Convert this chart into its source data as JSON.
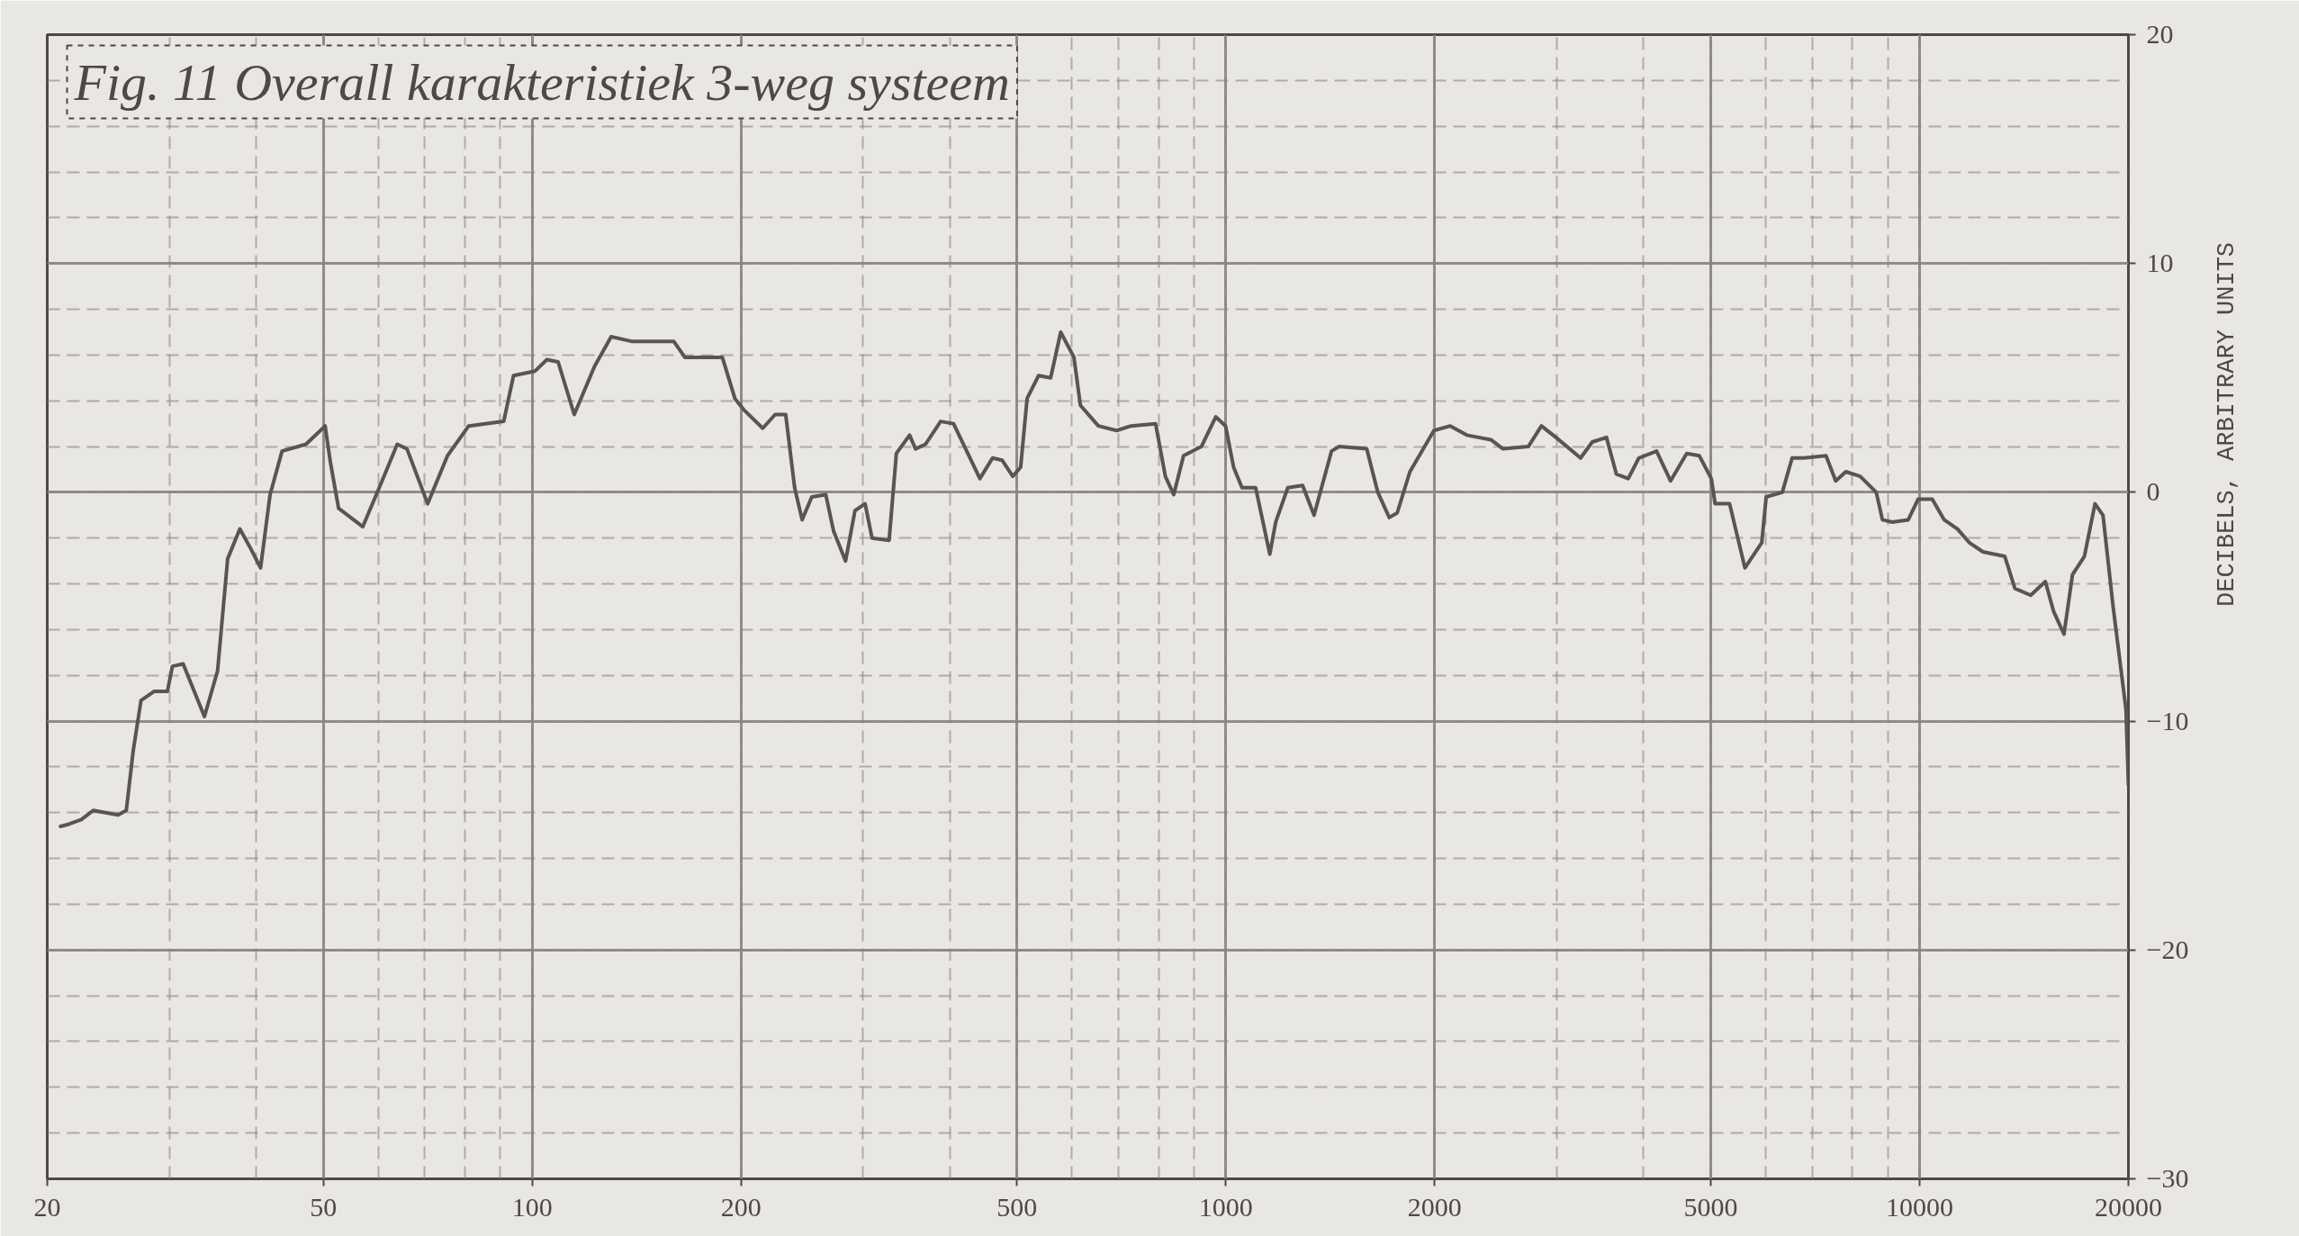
{
  "chart_data": {
    "type": "line",
    "title": "Fig. 11 Overall karakteristiek 3-weg systeem",
    "ylabel": "DECIBELS, ARBITRARY UNITS",
    "log": "x",
    "grid": true,
    "xlim": [
      20,
      20000
    ],
    "ylim": [
      -30,
      20
    ],
    "xticks": [
      20,
      50,
      100,
      200,
      500,
      1000,
      2000,
      5000,
      10000,
      20000
    ],
    "yticks": [
      -30,
      -20,
      -10,
      0,
      10,
      20
    ],
    "x": [
      20.9,
      21.5,
      22.4,
      23.3,
      25.3,
      26.0,
      26.6,
      27.3,
      28.5,
      29.8,
      30.3,
      31.4,
      33.7,
      35.2,
      36.4,
      37.9,
      39.2,
      40.6,
      41.9,
      43.6,
      47.2,
      50.3,
      51.2,
      52.6,
      57.0,
      60.2,
      63.9,
      66.0,
      70.7,
      75.5,
      81,
      91,
      94,
      101,
      105,
      109,
      115,
      123,
      130,
      139,
      160,
      166,
      188,
      196,
      202,
      215,
      224,
      232,
      239,
      245,
      253,
      265,
      272,
      283,
      292,
      302,
      309,
      327,
      335,
      350,
      357,
      369,
      388,
      405,
      442,
      461,
      476,
      493,
      506,
      517,
      537,
      559,
      578,
      604,
      617,
      655,
      696,
      730,
      792,
      818,
      841,
      869,
      922,
      967,
      999,
      1026,
      1055,
      1104,
      1157,
      1180,
      1228,
      1290,
      1340,
      1420,
      1456,
      1596,
      1656,
      1720,
      1766,
      1842,
      1995,
      2106,
      2225,
      2410,
      2509,
      2729,
      2850,
      2991,
      3246,
      3374,
      3537,
      3655,
      3802,
      3938,
      4177,
      4375,
      4617,
      4813,
      5009,
      5073,
      5323,
      5600,
      5922,
      6010,
      6340,
      6550,
      6810,
      7330,
      7570,
      7830,
      8210,
      8660,
      8840,
      9130,
      9630,
      9950,
      10430,
      10850,
      11340,
      11800,
      12340,
      13270,
      13720,
      14460,
      15180,
      15600,
      16150,
      16610,
      17280,
      17900,
      18380,
      19010,
      19840,
      20000
    ],
    "series": [
      {
        "color": "#5a5454",
        "values": [
          -14.6,
          -14.5,
          -14.3,
          -13.9,
          -14.1,
          -13.9,
          -11.3,
          -9.1,
          -8.7,
          -8.7,
          -7.6,
          -7.5,
          -9.8,
          -7.8,
          -2.9,
          -1.6,
          -2.4,
          -3.3,
          -0.1,
          1.8,
          2.1,
          2.9,
          1.3,
          -0.7,
          -1.5,
          0.2,
          2.1,
          1.9,
          -0.5,
          1.6,
          2.9,
          3.1,
          5.1,
          5.3,
          5.8,
          5.7,
          3.4,
          5.5,
          6.8,
          6.6,
          6.6,
          5.9,
          5.9,
          4.1,
          3.6,
          2.8,
          3.4,
          3.4,
          0.2,
          -1.2,
          -0.2,
          -0.1,
          -1.7,
          -3.0,
          -0.8,
          -0.5,
          -2.0,
          -2.1,
          1.7,
          2.5,
          1.9,
          2.1,
          3.1,
          3.0,
          0.6,
          1.5,
          1.4,
          0.7,
          1.1,
          4.1,
          5.1,
          5.0,
          7.0,
          5.9,
          3.8,
          2.9,
          2.7,
          2.9,
          3.0,
          0.7,
          -0.1,
          1.6,
          2.0,
          3.3,
          2.9,
          1.1,
          0.2,
          0.2,
          -2.7,
          -1.3,
          0.2,
          0.3,
          -1.0,
          1.8,
          2.0,
          1.9,
          0.0,
          -1.1,
          -0.9,
          0.9,
          2.7,
          2.9,
          2.5,
          2.3,
          1.9,
          2.0,
          2.9,
          2.4,
          1.5,
          2.2,
          2.4,
          0.8,
          0.6,
          1.5,
          1.8,
          0.5,
          1.7,
          1.6,
          0.6,
          -0.5,
          -0.5,
          -3.3,
          -2.2,
          -0.2,
          0.0,
          1.5,
          1.5,
          1.6,
          0.5,
          0.9,
          0.7,
          0.0,
          -1.2,
          -1.3,
          -1.2,
          -0.3,
          -0.3,
          -1.2,
          -1.6,
          -2.2,
          -2.6,
          -2.8,
          -4.2,
          -4.5,
          -3.9,
          -5.2,
          -6.2,
          -3.6,
          -2.8,
          -0.5,
          -1.0,
          -5.0,
          -9.5,
          -12.8
        ]
      }
    ]
  }
}
